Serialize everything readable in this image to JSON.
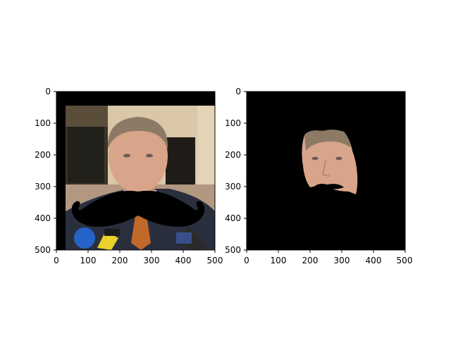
{
  "panels": [
    {
      "name": "original-with-mustache",
      "x_ticks": [
        "0",
        "100",
        "200",
        "300",
        "400",
        "500"
      ],
      "y_ticks": [
        "0",
        "100",
        "200",
        "300",
        "400",
        "500"
      ],
      "x_range": [
        0,
        500
      ],
      "y_range": [
        0,
        500
      ],
      "y_inverted": true,
      "content": "photo of a man in suit with overlaid black mustache"
    },
    {
      "name": "masked-face",
      "x_ticks": [
        "0",
        "100",
        "200",
        "300",
        "400",
        "500"
      ],
      "y_ticks": [
        "0",
        "100",
        "200",
        "300",
        "400",
        "500"
      ],
      "x_range": [
        0,
        500
      ],
      "y_range": [
        0,
        500
      ],
      "y_inverted": true,
      "content": "face region isolated on black background"
    }
  ],
  "colors": {
    "background": "#ffffff",
    "mask": "#000000",
    "skin": "#d8a58a",
    "suit": "#2a2f3e",
    "wall": "#d9c7a8",
    "tie": "#c06a2a"
  }
}
